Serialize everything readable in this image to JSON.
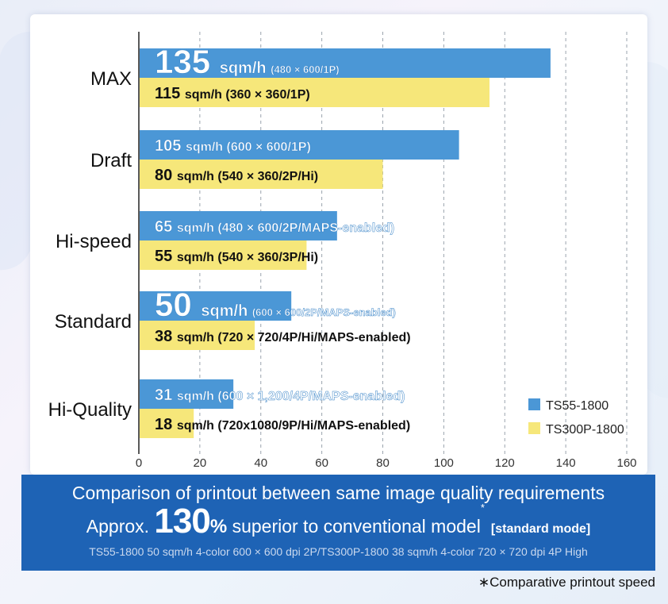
{
  "chart_data": {
    "type": "bar",
    "orientation": "horizontal",
    "categories": [
      "MAX",
      "Draft",
      "Hi-speed",
      "Standard",
      "Hi-Quality"
    ],
    "xlim": [
      0,
      160
    ],
    "xticks": [
      0,
      20,
      40,
      60,
      80,
      100,
      120,
      140,
      160
    ],
    "grid": true,
    "legend": "bottom-right",
    "series": [
      {
        "name": "TS55-1800",
        "color": "#4b97d6",
        "values": [
          135,
          105,
          65,
          50,
          31
        ],
        "value_labels": [
          "135",
          "105",
          "65",
          "50",
          "31"
        ],
        "unit_label": "sqm/h",
        "details": [
          "(480 × 600/1P)",
          "(600 × 600/1P)",
          "(480 × 600/2P/MAPS-enabled)",
          "(600 × 600/2P/MAPS-enabled)",
          "(600 × 1,200/4P/MAPS-enabled)"
        ]
      },
      {
        "name": "TS300P-1800",
        "color": "#f6e77a",
        "values": [
          115,
          80,
          55,
          38,
          18
        ],
        "value_labels": [
          "115",
          "80",
          "55",
          "38",
          "18"
        ],
        "unit_label": "sqm/h",
        "details": [
          "(360 × 360/1P)",
          "(540 × 360/2P/Hi)",
          "(540 × 360/3P/Hi)",
          "(720 × 720/4P/Hi/MAPS-enabled)",
          "(720x1080/9P/Hi/MAPS-enabled)"
        ]
      }
    ]
  },
  "banner": {
    "line1": "Comparison of printout between same image quality requirements",
    "approx": "Approx.",
    "big_number": "130",
    "percent": "%",
    "rest": " superior to conventional model",
    "asterisk": "*",
    "mode": "[standard mode]",
    "line3": "TS55-1800 50 sqm/h 4-color 600 × 600 dpi 2P/TS300P-1800 38 sqm/h 4-color 720 × 720 dpi 4P High"
  },
  "footnote": "∗Comparative printout speed"
}
